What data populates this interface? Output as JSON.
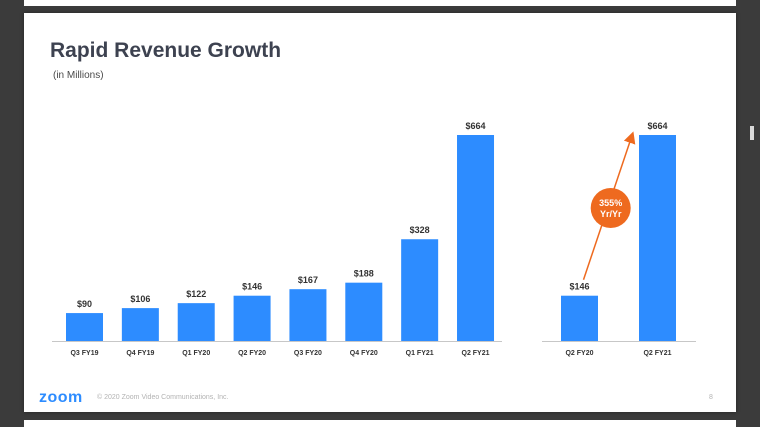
{
  "slide": {
    "title": "Rapid Revenue Growth",
    "subtitle": "(in Millions)",
    "footer_logo": "zoom",
    "footer_copyright": "© 2020 Zoom Video Communications, Inc.",
    "page_number": "8"
  },
  "colors": {
    "bar": "#2d8cff",
    "arrow": "#ee6a1f",
    "badge": "#ee6a1f",
    "axis": "#c7c7c7",
    "background": "#3b3b3b"
  },
  "chart_data": [
    {
      "type": "bar",
      "categories": [
        "Q3 FY19",
        "Q4 FY19",
        "Q1 FY20",
        "Q2 FY20",
        "Q3 FY20",
        "Q4 FY20",
        "Q1 FY21",
        "Q2 FY21"
      ],
      "values": [
        90,
        106,
        122,
        146,
        167,
        188,
        328,
        664
      ],
      "labels": [
        "$90",
        "$106",
        "$122",
        "$146",
        "$167",
        "$188",
        "$328",
        "$664"
      ],
      "ylim": [
        0,
        664
      ],
      "grid": false
    },
    {
      "type": "bar",
      "categories": [
        "Q2 FY20",
        "Q2 FY21"
      ],
      "values": [
        146,
        664
      ],
      "labels": [
        "$146",
        "$664"
      ],
      "ylim": [
        0,
        664
      ],
      "grid": false,
      "annotation": {
        "line1": "355%",
        "line2": "Yr/Yr"
      }
    }
  ]
}
